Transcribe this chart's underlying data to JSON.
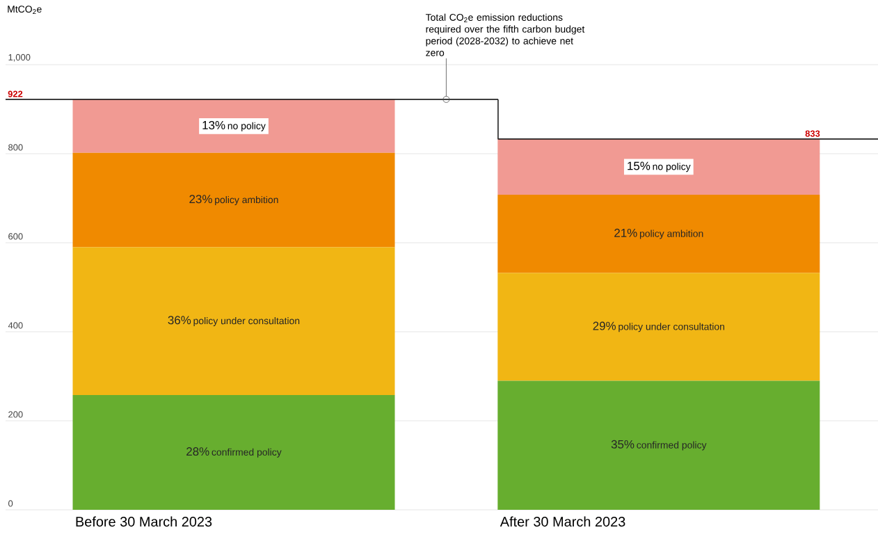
{
  "chart_data": {
    "type": "bar",
    "stacked": true,
    "ylabel": "MtCO$_{2}$e",
    "categories": [
      "Before 30 March 2023",
      "After 30 March 2023"
    ],
    "ylim": [
      0,
      1000
    ],
    "yticks": [
      0,
      200,
      400,
      600,
      800,
      {
        "value": 1000,
        "label": "1,000"
      }
    ],
    "grid": "y",
    "series": [
      {
        "name": "confirmed policy",
        "color": "#67ae2f",
        "values": [
          258,
          290
        ]
      },
      {
        "name": "policy under consultation",
        "color": "#f1b614",
        "values": [
          332,
          242
        ]
      },
      {
        "name": "policy ambition",
        "color": "#f08a00",
        "values": [
          212,
          176
        ]
      },
      {
        "name": "no policy",
        "color": "#f19a93",
        "values": [
          120,
          125
        ]
      }
    ],
    "ref_lines": [
      {
        "axis": "y",
        "value": 922,
        "label": "922",
        "color": "#222222"
      },
      {
        "axis": "y",
        "value": 833,
        "label": "833",
        "color": "#222222"
      }
    ],
    "annotations": [
      "28%",
      "35%",
      "36%",
      "29%",
      "23%",
      "21%",
      "13%",
      "15%",
      "Total CO$_{2}$e emission reductions required over the fifth carbon budget period (2028-2032) to achieve net zero"
    ]
  }
}
